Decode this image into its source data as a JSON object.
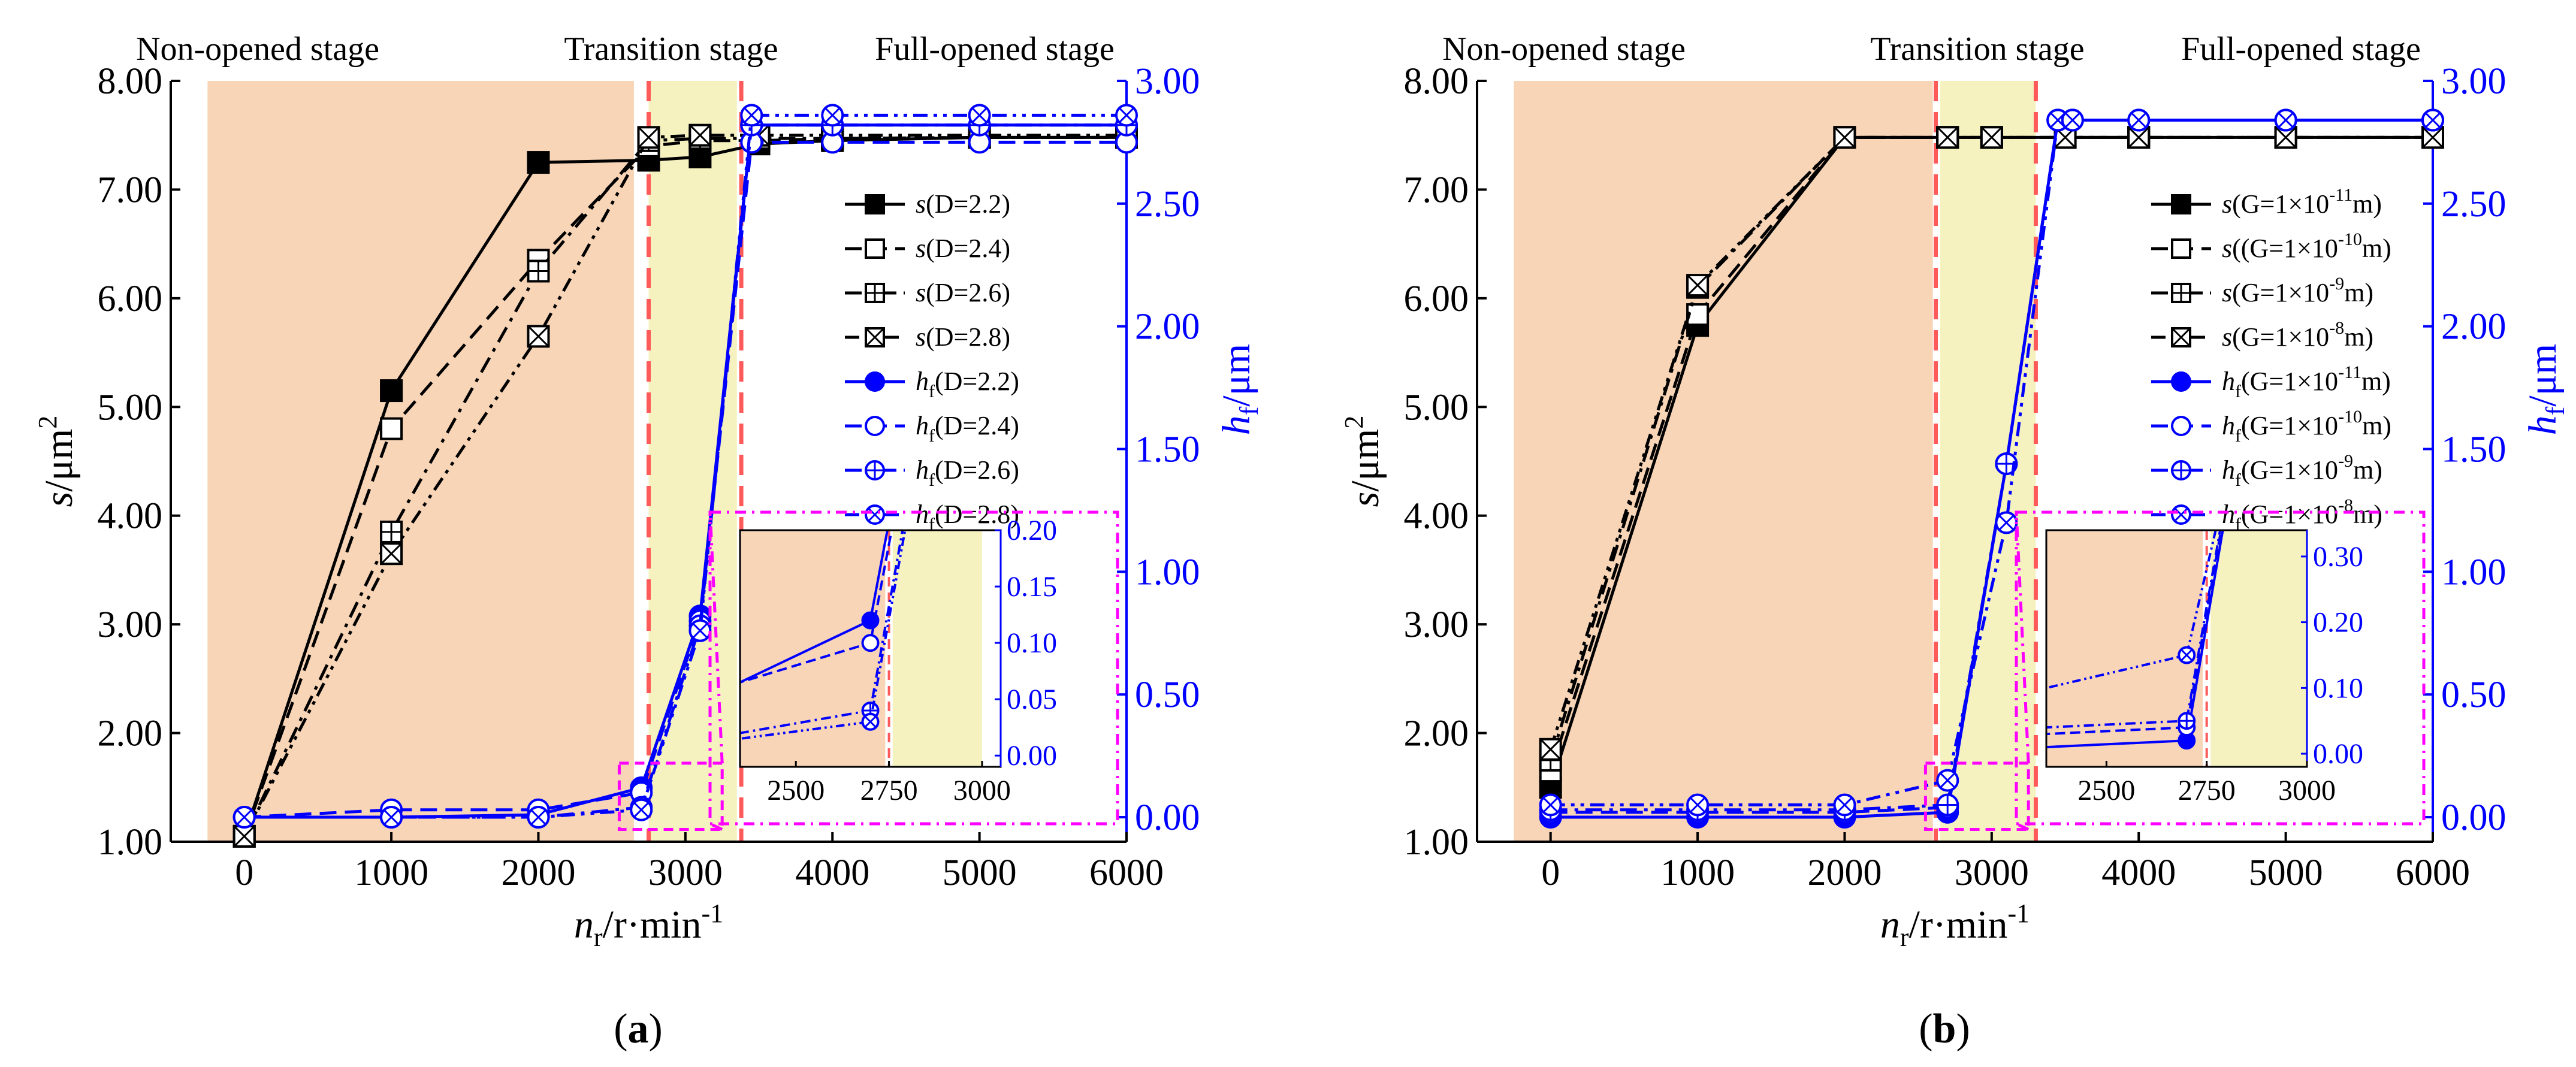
{
  "colors": {
    "black": "#000000",
    "blue": "#0000ff",
    "non_opened_fill": "#f8d5b7",
    "transition_fill": "#f6f2c0",
    "boundary_line": "#ff5a5a",
    "inset_frame": "#ff00ff"
  },
  "panels": [
    {
      "id": "a",
      "label_pre": "(",
      "label_letter": "a",
      "label_post": ")",
      "stages": {
        "non_opened": "Non-opened stage",
        "transition": "Transition stage",
        "full_opened": "Full-opened stage"
      },
      "stage_bounds": {
        "non_start": -250,
        "non_end": 2650,
        "trans_start": 2750,
        "trans_end": 3350,
        "line1": 2750,
        "line2": 3380
      },
      "chart_data": {
        "type": "line",
        "title": "",
        "xlabel": "n_r/r·min^-1",
        "ylabel_left": "s/μm^2",
        "ylabel_right": "h_f/μm",
        "xlim": [
          -500,
          6000
        ],
        "ylim_left": [
          1.0,
          8.0
        ],
        "ylim_right": [
          -0.1,
          3.0
        ],
        "xticks": [
          0,
          1000,
          2000,
          3000,
          4000,
          5000,
          6000
        ],
        "xtick_labels": [
          "0",
          "1000",
          "2000",
          "3000",
          "4000",
          "5000",
          "6000"
        ],
        "yticks_left": [
          1,
          2,
          3,
          4,
          5,
          6,
          7,
          8
        ],
        "ytick_labels_left": [
          "1.00",
          "2.00",
          "3.00",
          "4.00",
          "5.00",
          "6.00",
          "7.00",
          "8.00"
        ],
        "yticks_right": [
          0,
          0.5,
          1.0,
          1.5,
          2.0,
          2.5,
          3.0
        ],
        "ytick_labels_right": [
          "0.00",
          "0.50",
          "1.00",
          "1.50",
          "2.00",
          "2.50",
          "3.00"
        ],
        "series": [
          {
            "name": "s(D=2.2)",
            "leg_main": "s",
            "leg_sub": "",
            "leg_args": "(D=2.2)",
            "leg_sup": "",
            "leg_tail": "",
            "axis": "left",
            "color": "#000000",
            "dash": "solid",
            "marker": "filled_square",
            "x": [
              0,
              1000,
              2000,
              2750,
              3100,
              3500,
              4000,
              5000,
              6000
            ],
            "y": [
              1.05,
              5.15,
              7.25,
              7.27,
              7.3,
              7.42,
              7.45,
              7.48,
              7.48
            ]
          },
          {
            "name": "s(D=2.4)",
            "leg_main": "s",
            "leg_sub": "",
            "leg_args": "(D=2.4)",
            "leg_sup": "",
            "leg_tail": "",
            "axis": "left",
            "color": "#000000",
            "dash": "dash",
            "marker": "open_square",
            "x": [
              0,
              1000,
              2000,
              2750,
              3100,
              3500,
              4000,
              5000,
              6000
            ],
            "y": [
              1.05,
              4.8,
              6.35,
              7.4,
              7.45,
              7.45,
              7.47,
              7.48,
              7.48
            ]
          },
          {
            "name": "s(D=2.6)",
            "leg_main": "s",
            "leg_sub": "",
            "leg_args": "(D=2.6)",
            "leg_sup": "",
            "leg_tail": "",
            "axis": "left",
            "color": "#000000",
            "dash": "dashdot",
            "marker": "plus_square",
            "x": [
              0,
              1000,
              2000,
              2750,
              3100,
              3500,
              4000,
              5000,
              6000
            ],
            "y": [
              1.05,
              3.85,
              6.25,
              7.45,
              7.47,
              7.47,
              7.47,
              7.48,
              7.48
            ]
          },
          {
            "name": "s(D=2.8)",
            "leg_main": "s",
            "leg_sub": "",
            "leg_args": "(D=2.8)",
            "leg_sup": "",
            "leg_tail": "",
            "axis": "left",
            "color": "#000000",
            "dash": "dashdotdot",
            "marker": "x_square",
            "x": [
              0,
              1000,
              2000,
              2750,
              3100,
              3500,
              4000,
              5000,
              6000
            ],
            "y": [
              1.05,
              3.65,
              5.65,
              7.48,
              7.5,
              7.5,
              7.5,
              7.5,
              7.5
            ]
          },
          {
            "name": "h_f(D=2.2)",
            "leg_main": "h",
            "leg_sub": "f",
            "leg_args": "(D=2.2)",
            "leg_sup": "",
            "leg_tail": "",
            "axis": "right",
            "color": "#0000ff",
            "dash": "solid",
            "marker": "filled_circle",
            "x": [
              0,
              1000,
              2000,
              2700,
              3100,
              3450,
              4000,
              5000,
              6000
            ],
            "y": [
              0.0,
              0.0,
              0.01,
              0.12,
              0.82,
              2.82,
              2.82,
              2.82,
              2.82
            ]
          },
          {
            "name": "h_f(D=2.4)",
            "leg_main": "h",
            "leg_sub": "f",
            "leg_args": "(D=2.4)",
            "leg_sup": "",
            "leg_tail": "",
            "axis": "right",
            "color": "#0000ff",
            "dash": "dash",
            "marker": "open_circle",
            "x": [
              0,
              1000,
              2000,
              2700,
              3100,
              3450,
              4000,
              5000,
              6000
            ],
            "y": [
              0.0,
              0.03,
              0.03,
              0.1,
              0.8,
              2.75,
              2.75,
              2.75,
              2.75
            ]
          },
          {
            "name": "h_f(D=2.6)",
            "leg_main": "h",
            "leg_sub": "f",
            "leg_args": "(D=2.6)",
            "leg_sup": "",
            "leg_tail": "",
            "axis": "right",
            "color": "#0000ff",
            "dash": "dashdot",
            "marker": "plus_circle",
            "x": [
              0,
              1000,
              2000,
              2700,
              3100,
              3450,
              4000,
              5000,
              6000
            ],
            "y": [
              0.0,
              0.0,
              0.0,
              0.04,
              0.78,
              2.82,
              2.82,
              2.82,
              2.82
            ]
          },
          {
            "name": "h_f(D=2.8)",
            "leg_main": "h",
            "leg_sub": "f",
            "leg_args": "(D=2.8)",
            "leg_sup": "",
            "leg_tail": "",
            "axis": "right",
            "color": "#0000ff",
            "dash": "dashdotdot",
            "marker": "x_circle",
            "x": [
              0,
              1000,
              2000,
              2700,
              3100,
              3450,
              4000,
              5000,
              6000
            ],
            "y": [
              0.0,
              0.0,
              0.0,
              0.03,
              0.76,
              2.86,
              2.86,
              2.86,
              2.86
            ]
          }
        ],
        "inset": {
          "xlim": [
            2350,
            3050
          ],
          "ylim": [
            -0.01,
            0.2
          ],
          "xticks": [
            2500,
            2750,
            3000
          ],
          "xtick_labels": [
            "2500",
            "2750",
            "3000"
          ],
          "yticks": [
            0,
            0.05,
            0.1,
            0.15,
            0.2
          ],
          "ytick_labels": [
            "0.00",
            "0.05",
            "0.10",
            "0.15",
            "0.20"
          ],
          "non_opened_end": 2740,
          "transition_start": 2760,
          "transition_end": 3000,
          "boundary_x": 2750
        }
      }
    },
    {
      "id": "b",
      "label_pre": "(",
      "label_letter": "b",
      "label_post": ")",
      "stages": {
        "non_opened": "Non-opened stage",
        "transition": "Transition stage",
        "full_opened": "Full-opened stage"
      },
      "stage_bounds": {
        "non_start": -250,
        "non_end": 2600,
        "trans_start": 2650,
        "trans_end": 3300,
        "line1": 2620,
        "line2": 3300
      },
      "chart_data": {
        "type": "line",
        "title": "",
        "xlabel": "n_r/r·min^-1",
        "ylabel_left": "s/μm^2",
        "ylabel_right": "h_f/μm",
        "xlim": [
          -500,
          6000
        ],
        "ylim_left": [
          1.0,
          8.0
        ],
        "ylim_right": [
          -0.1,
          3.0
        ],
        "xticks": [
          0,
          1000,
          2000,
          3000,
          4000,
          5000,
          6000
        ],
        "xtick_labels": [
          "0",
          "1000",
          "2000",
          "3000",
          "4000",
          "5000",
          "6000"
        ],
        "yticks_left": [
          1,
          2,
          3,
          4,
          5,
          6,
          7,
          8
        ],
        "ytick_labels_left": [
          "1.00",
          "2.00",
          "3.00",
          "4.00",
          "5.00",
          "6.00",
          "7.00",
          "8.00"
        ],
        "yticks_right": [
          0,
          0.5,
          1.0,
          1.5,
          2.0,
          2.5,
          3.0
        ],
        "ytick_labels_right": [
          "0.00",
          "0.50",
          "1.00",
          "1.50",
          "2.00",
          "2.50",
          "3.00"
        ],
        "series": [
          {
            "name": "s(G=1×10^-11m)",
            "leg_main": "s",
            "leg_sub": "",
            "leg_args": "(G=1×10",
            "leg_sup": "-11",
            "leg_tail": "m)",
            "axis": "left",
            "color": "#000000",
            "dash": "solid",
            "marker": "filled_square",
            "x": [
              0,
              1000,
              2000,
              2700,
              3000,
              3500,
              4000,
              5000,
              6000
            ],
            "y": [
              1.5,
              5.75,
              7.48,
              7.48,
              7.48,
              7.48,
              7.48,
              7.48,
              7.48
            ]
          },
          {
            "name": "s((G=1×10^-10m)",
            "leg_main": "s",
            "leg_sub": "",
            "leg_args": "((G=1×10",
            "leg_sup": "-10",
            "leg_tail": "m)",
            "axis": "left",
            "color": "#000000",
            "dash": "dash",
            "marker": "open_square",
            "x": [
              0,
              1000,
              2000,
              2700,
              3000,
              3500,
              4000,
              5000,
              6000
            ],
            "y": [
              1.65,
              5.85,
              7.48,
              7.48,
              7.48,
              7.48,
              7.48,
              7.48,
              7.48
            ]
          },
          {
            "name": "s(G=1×10^-9m)",
            "leg_main": "s",
            "leg_sub": "",
            "leg_args": "(G=1×10",
            "leg_sup": "-9",
            "leg_tail": "m)",
            "axis": "left",
            "color": "#000000",
            "dash": "dashdot",
            "marker": "plus_square",
            "x": [
              0,
              1000,
              2000,
              2700,
              3000,
              3500,
              4000,
              5000,
              6000
            ],
            "y": [
              1.75,
              6.1,
              7.48,
              7.48,
              7.48,
              7.48,
              7.48,
              7.48,
              7.48
            ]
          },
          {
            "name": "s(G=1×10^-8m)",
            "leg_main": "s",
            "leg_sub": "",
            "leg_args": "(G=1×10",
            "leg_sup": "-8",
            "leg_tail": "m)",
            "axis": "left",
            "color": "#000000",
            "dash": "dashdotdot",
            "marker": "x_square",
            "x": [
              0,
              1000,
              2000,
              2700,
              3000,
              3500,
              4000,
              5000,
              6000
            ],
            "y": [
              1.85,
              6.12,
              7.48,
              7.48,
              7.48,
              7.48,
              7.48,
              7.48,
              7.48
            ]
          },
          {
            "name": "h_f(G=1×10^-11m)",
            "leg_main": "h",
            "leg_sub": "f",
            "leg_args": "(G=1×10",
            "leg_sup": "-11",
            "leg_tail": "m)",
            "axis": "right",
            "color": "#0000ff",
            "dash": "solid",
            "marker": "filled_circle",
            "x": [
              0,
              1000,
              2000,
              2700,
              3100,
              3450,
              3550,
              4000,
              5000,
              6000
            ],
            "y": [
              0.0,
              0.0,
              0.0,
              0.02,
              1.44,
              2.84,
              2.84,
              2.84,
              2.84,
              2.84
            ]
          },
          {
            "name": "h_f(G=1×10^-10m)",
            "leg_main": "h",
            "leg_sub": "f",
            "leg_args": "(G=1×10",
            "leg_sup": "-10",
            "leg_tail": "m)",
            "axis": "right",
            "color": "#0000ff",
            "dash": "dash",
            "marker": "open_circle",
            "x": [
              0,
              1000,
              2000,
              2700,
              3100,
              3450,
              3550,
              4000,
              5000,
              6000
            ],
            "y": [
              0.02,
              0.02,
              0.02,
              0.04,
              1.44,
              2.84,
              2.84,
              2.84,
              2.84,
              2.84
            ]
          },
          {
            "name": "h_f(G=1×10^-9m)",
            "leg_main": "h",
            "leg_sub": "f",
            "leg_args": "(G=1×10",
            "leg_sup": "-9",
            "leg_tail": "m)",
            "axis": "right",
            "color": "#0000ff",
            "dash": "dashdot",
            "marker": "plus_circle",
            "x": [
              0,
              1000,
              2000,
              2700,
              3100,
              3450,
              3550,
              4000,
              5000,
              6000
            ],
            "y": [
              0.03,
              0.03,
              0.03,
              0.05,
              1.44,
              2.84,
              2.84,
              2.84,
              2.84,
              2.84
            ]
          },
          {
            "name": "h_f(G=1×10^-8m)",
            "leg_main": "h",
            "leg_sub": "f",
            "leg_args": "(G=1×10",
            "leg_sup": "-8",
            "leg_tail": "m)",
            "axis": "right",
            "color": "#0000ff",
            "dash": "dashdotdot",
            "marker": "x_circle",
            "x": [
              0,
              1000,
              2000,
              2700,
              3100,
              3450,
              3550,
              4000,
              5000,
              6000
            ],
            "y": [
              0.05,
              0.05,
              0.05,
              0.15,
              1.2,
              2.84,
              2.84,
              2.84,
              2.84,
              2.84
            ]
          }
        ],
        "inset": {
          "xlim": [
            2350,
            3000
          ],
          "ylim": [
            -0.02,
            0.34
          ],
          "xticks": [
            2500,
            2750,
            3000
          ],
          "xtick_labels": [
            "2500",
            "2750",
            "3000"
          ],
          "yticks": [
            0,
            0.1,
            0.2,
            0.3
          ],
          "ytick_labels": [
            "0.00",
            "0.10",
            "0.20",
            "0.30"
          ],
          "non_opened_end": 2740,
          "transition_start": 2760,
          "transition_end": 3000,
          "boundary_x": 2750
        }
      }
    }
  ]
}
